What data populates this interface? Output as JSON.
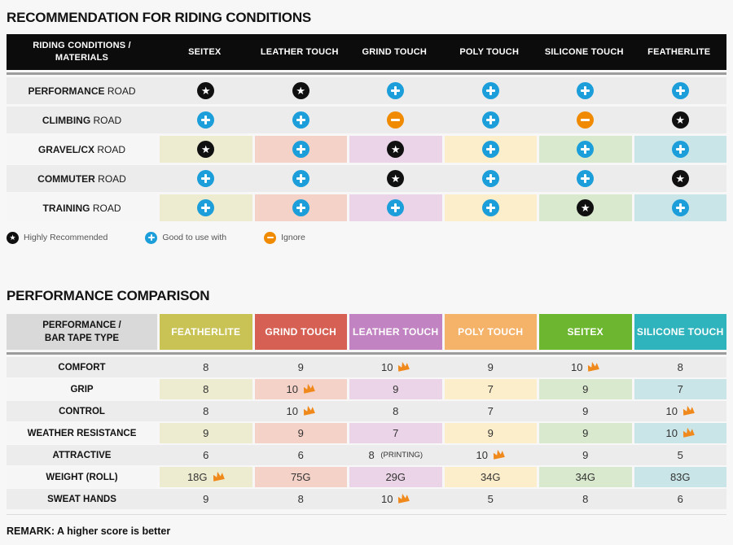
{
  "riding_table": {
    "title": "RECOMMENDATION FOR RIDING CONDITIONS",
    "header_label_line1": "RIDING CONDITIONS /",
    "header_label_line2": "MATERIALS",
    "columns": [
      "SEITEX",
      "LEATHER TOUCH",
      "GRIND TOUCH",
      "POLY TOUCH",
      "SILICONE TOUCH",
      "FEATHERLITE"
    ],
    "rating_legend_key": {
      "star": "Highly Recommended",
      "plus": "Good to use with",
      "minus": "Ignore"
    },
    "rows": [
      {
        "condition": "PERFORMANCE",
        "condition_suffix": "ROAD",
        "tinted": false,
        "ratings": [
          "star",
          "star",
          "plus",
          "plus",
          "plus",
          "plus"
        ]
      },
      {
        "condition": "CLIMBING",
        "condition_suffix": "ROAD",
        "tinted": false,
        "ratings": [
          "plus",
          "plus",
          "minus",
          "plus",
          "minus",
          "star"
        ]
      },
      {
        "condition": "GRAVEL/CX",
        "condition_suffix": "ROAD",
        "tinted": true,
        "ratings": [
          "star",
          "plus",
          "star",
          "plus",
          "plus",
          "plus"
        ]
      },
      {
        "condition": "COMMUTER",
        "condition_suffix": "ROAD",
        "tinted": false,
        "ratings": [
          "plus",
          "plus",
          "star",
          "plus",
          "plus",
          "star"
        ]
      },
      {
        "condition": "TRAINING",
        "condition_suffix": "ROAD",
        "tinted": true,
        "ratings": [
          "plus",
          "plus",
          "plus",
          "plus",
          "star",
          "plus"
        ]
      }
    ],
    "legend": [
      {
        "icon": "star",
        "label": "Highly Recommended"
      },
      {
        "icon": "plus",
        "label": "Good to use with"
      },
      {
        "icon": "minus",
        "label": "Ignore"
      }
    ]
  },
  "performance_table": {
    "title": "PERFORMANCE COMPARISON",
    "header_label_line1": "PERFORMANCE /",
    "header_label_line2": "BAR TAPE TYPE",
    "columns": [
      {
        "name": "FEATHERLITE",
        "color": "#c9c255",
        "pale": "#edebd0"
      },
      {
        "name": "GRIND TOUCH",
        "color": "#d66053",
        "pale": "#f5d2c8"
      },
      {
        "name": "LEATHER TOUCH",
        "color": "#c183c1",
        "pale": "#ecd4e8"
      },
      {
        "name": "POLY TOUCH",
        "color": "#f5b269",
        "pale": "#fdeecb"
      },
      {
        "name": "SEITEX",
        "color": "#6db62f",
        "pale": "#d9e9ce"
      },
      {
        "name": "SILICONE TOUCH",
        "color": "#2fb3bc",
        "pale": "#c9e5e7"
      }
    ],
    "rows": [
      {
        "label": "COMFORT",
        "tinted": false,
        "cells": [
          {
            "v": "8"
          },
          {
            "v": "9"
          },
          {
            "v": "10",
            "crown": true
          },
          {
            "v": "9"
          },
          {
            "v": "10",
            "crown": true
          },
          {
            "v": "8"
          }
        ]
      },
      {
        "label": "GRIP",
        "tinted": true,
        "cells": [
          {
            "v": "8"
          },
          {
            "v": "10",
            "crown": true
          },
          {
            "v": "9"
          },
          {
            "v": "7"
          },
          {
            "v": "9"
          },
          {
            "v": "7"
          }
        ]
      },
      {
        "label": "CONTROL",
        "tinted": false,
        "cells": [
          {
            "v": "8"
          },
          {
            "v": "10",
            "crown": true
          },
          {
            "v": "8"
          },
          {
            "v": "7"
          },
          {
            "v": "9"
          },
          {
            "v": "10",
            "crown": true
          }
        ]
      },
      {
        "label": "WEATHER RESISTANCE",
        "tinted": true,
        "cells": [
          {
            "v": "9"
          },
          {
            "v": "9"
          },
          {
            "v": "7"
          },
          {
            "v": "9"
          },
          {
            "v": "9"
          },
          {
            "v": "10",
            "crown": true
          }
        ]
      },
      {
        "label": "ATTRACTIVE",
        "tinted": false,
        "cells": [
          {
            "v": "6"
          },
          {
            "v": "6"
          },
          {
            "v": "8",
            "note": "(PRINTING)"
          },
          {
            "v": "10",
            "crown": true
          },
          {
            "v": "9"
          },
          {
            "v": "5"
          }
        ]
      },
      {
        "label": "WEIGHT (ROLL)",
        "tinted": true,
        "cells": [
          {
            "v": "18G",
            "crown": true
          },
          {
            "v": "75G"
          },
          {
            "v": "29G"
          },
          {
            "v": "34G"
          },
          {
            "v": "34G"
          },
          {
            "v": "83G"
          }
        ]
      },
      {
        "label": "SWEAT HANDS",
        "tinted": false,
        "cells": [
          {
            "v": "9"
          },
          {
            "v": "8"
          },
          {
            "v": "10",
            "crown": true
          },
          {
            "v": "5"
          },
          {
            "v": "8"
          },
          {
            "v": "6"
          }
        ]
      }
    ],
    "remark": "REMARK: A higher score is better"
  },
  "riding_pale_colors": [
    "#edebd0",
    "#f5d2c8",
    "#ecd4e8",
    "#fdeecb",
    "#d9e9ce",
    "#c9e5e7"
  ],
  "colors": {
    "star_bg": "#101010",
    "plus_bg": "#1b9ed9",
    "minus_bg": "#f08a00",
    "crown": "#f0891c",
    "row_gray": "#ececec",
    "tinted_label_bg": "#f6f6f6",
    "header_black": "#0c0c0c",
    "header_label_gray": "#d9d9d9"
  }
}
